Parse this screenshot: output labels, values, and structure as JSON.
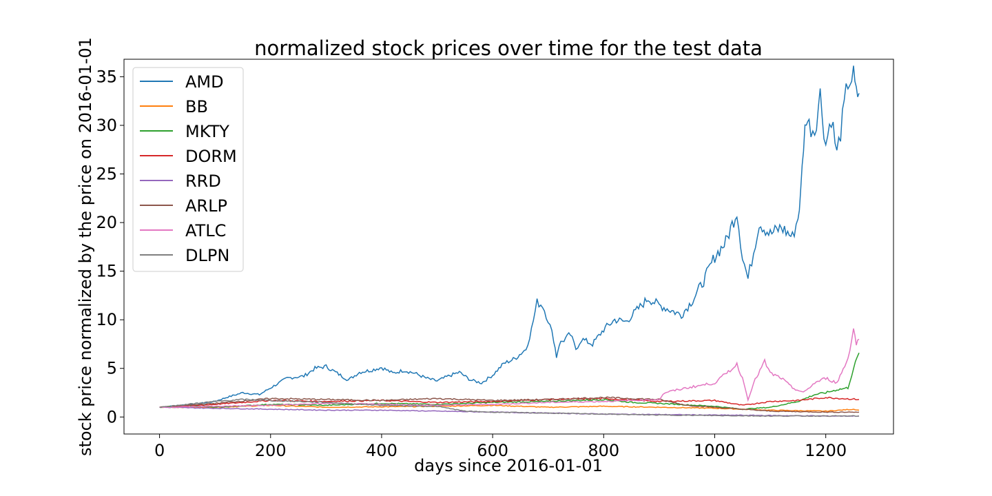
{
  "chart_data": {
    "type": "line",
    "title": "normalized stock prices over time for the test data",
    "xlabel": "days since 2016-01-01",
    "ylabel": "stock price normalized by the price on 2016-01-01",
    "xlim": [
      -64,
      1322
    ],
    "ylim": [
      -1.75,
      36.8
    ],
    "xticks": [
      0,
      200,
      400,
      600,
      800,
      1000,
      1200
    ],
    "yticks": [
      0,
      5,
      10,
      15,
      20,
      25,
      30,
      35
    ],
    "grid": false,
    "legend_position": "upper-left",
    "series": [
      {
        "name": "AMD",
        "color": "#1f77b4",
        "points": [
          [
            0,
            1.0
          ],
          [
            20,
            1.1
          ],
          [
            50,
            1.3
          ],
          [
            80,
            1.45
          ],
          [
            100,
            1.6
          ],
          [
            120,
            2.0
          ],
          [
            150,
            2.5
          ],
          [
            180,
            2.3
          ],
          [
            200,
            3.0
          ],
          [
            230,
            4.0
          ],
          [
            260,
            4.2
          ],
          [
            280,
            5.0
          ],
          [
            300,
            5.2
          ],
          [
            320,
            4.5
          ],
          [
            340,
            3.8
          ],
          [
            360,
            4.6
          ],
          [
            380,
            4.8
          ],
          [
            400,
            5.1
          ],
          [
            420,
            4.5
          ],
          [
            440,
            4.8
          ],
          [
            460,
            4.5
          ],
          [
            480,
            4.0
          ],
          [
            500,
            3.7
          ],
          [
            520,
            4.2
          ],
          [
            540,
            4.6
          ],
          [
            560,
            3.8
          ],
          [
            580,
            3.5
          ],
          [
            600,
            4.3
          ],
          [
            620,
            5.5
          ],
          [
            640,
            6.0
          ],
          [
            660,
            7.0
          ],
          [
            670,
            9.0
          ],
          [
            680,
            11.8
          ],
          [
            690,
            11.5
          ],
          [
            700,
            10.0
          ],
          [
            710,
            8.0
          ],
          [
            715,
            6.2
          ],
          [
            720,
            7.5
          ],
          [
            740,
            8.5
          ],
          [
            750,
            7.0
          ],
          [
            760,
            8.0
          ],
          [
            780,
            7.5
          ],
          [
            800,
            9.0
          ],
          [
            820,
            10.0
          ],
          [
            840,
            9.8
          ],
          [
            860,
            11.0
          ],
          [
            880,
            12.2
          ],
          [
            900,
            11.5
          ],
          [
            920,
            11.0
          ],
          [
            940,
            10.5
          ],
          [
            960,
            12.0
          ],
          [
            980,
            14.0
          ],
          [
            1000,
            16.5
          ],
          [
            1020,
            18.0
          ],
          [
            1040,
            21.2
          ],
          [
            1050,
            16.5
          ],
          [
            1060,
            14.2
          ],
          [
            1070,
            17.0
          ],
          [
            1080,
            20.0
          ],
          [
            1100,
            18.8
          ],
          [
            1120,
            19.5
          ],
          [
            1140,
            18.5
          ],
          [
            1150,
            20.5
          ],
          [
            1155,
            23.0
          ],
          [
            1160,
            28.0
          ],
          [
            1165,
            31.0
          ],
          [
            1170,
            30.0
          ],
          [
            1180,
            29.5
          ],
          [
            1190,
            33.2
          ],
          [
            1200,
            28.0
          ],
          [
            1210,
            31.0
          ],
          [
            1220,
            27.0
          ],
          [
            1230,
            30.5
          ],
          [
            1240,
            34.5
          ],
          [
            1250,
            35.0
          ],
          [
            1255,
            33.0
          ],
          [
            1260,
            33.3
          ]
        ]
      },
      {
        "name": "BB",
        "color": "#ff7f0e",
        "points": [
          [
            0,
            1.0
          ],
          [
            100,
            1.0
          ],
          [
            200,
            1.2
          ],
          [
            300,
            1.0
          ],
          [
            400,
            1.05
          ],
          [
            500,
            1.1
          ],
          [
            600,
            1.2
          ],
          [
            700,
            1.0
          ],
          [
            800,
            1.1
          ],
          [
            900,
            1.0
          ],
          [
            1000,
            0.9
          ],
          [
            1100,
            0.7
          ],
          [
            1200,
            0.6
          ],
          [
            1250,
            0.8
          ],
          [
            1260,
            0.7
          ]
        ]
      },
      {
        "name": "MKTY",
        "color": "#2ca02c",
        "points": [
          [
            0,
            1.0
          ],
          [
            50,
            1.2
          ],
          [
            100,
            1.0
          ],
          [
            200,
            1.3
          ],
          [
            300,
            1.2
          ],
          [
            400,
            1.4
          ],
          [
            500,
            1.3
          ],
          [
            600,
            1.5
          ],
          [
            700,
            1.6
          ],
          [
            800,
            1.8
          ],
          [
            850,
            1.5
          ],
          [
            900,
            1.4
          ],
          [
            1000,
            1.1
          ],
          [
            1050,
            0.8
          ],
          [
            1100,
            1.0
          ],
          [
            1150,
            1.6
          ],
          [
            1180,
            2.3
          ],
          [
            1200,
            2.5
          ],
          [
            1220,
            2.8
          ],
          [
            1240,
            3.0
          ],
          [
            1250,
            5.0
          ],
          [
            1260,
            6.6
          ]
        ]
      },
      {
        "name": "DORM",
        "color": "#d62728",
        "points": [
          [
            0,
            1.0
          ],
          [
            100,
            1.3
          ],
          [
            200,
            1.7
          ],
          [
            300,
            1.6
          ],
          [
            400,
            1.7
          ],
          [
            500,
            1.5
          ],
          [
            600,
            1.6
          ],
          [
            700,
            1.8
          ],
          [
            800,
            1.9
          ],
          [
            900,
            1.6
          ],
          [
            1000,
            1.7
          ],
          [
            1050,
            1.2
          ],
          [
            1100,
            1.6
          ],
          [
            1150,
            1.7
          ],
          [
            1200,
            2.0
          ],
          [
            1260,
            1.8
          ]
        ]
      },
      {
        "name": "RRD",
        "color": "#9467bd",
        "points": [
          [
            0,
            1.0
          ],
          [
            100,
            0.9
          ],
          [
            200,
            0.8
          ],
          [
            300,
            0.7
          ],
          [
            400,
            0.7
          ],
          [
            500,
            0.6
          ],
          [
            600,
            0.5
          ],
          [
            700,
            0.4
          ],
          [
            800,
            0.3
          ],
          [
            900,
            0.25
          ],
          [
            1000,
            0.2
          ],
          [
            1100,
            0.15
          ],
          [
            1200,
            0.1
          ],
          [
            1260,
            0.1
          ]
        ]
      },
      {
        "name": "ARLP",
        "color": "#8c564b",
        "points": [
          [
            0,
            1.0
          ],
          [
            100,
            1.4
          ],
          [
            200,
            1.9
          ],
          [
            300,
            1.8
          ],
          [
            400,
            1.7
          ],
          [
            500,
            1.9
          ],
          [
            600,
            1.7
          ],
          [
            700,
            1.8
          ],
          [
            800,
            2.0
          ],
          [
            900,
            1.8
          ],
          [
            950,
            1.2
          ],
          [
            1000,
            1.0
          ],
          [
            1050,
            0.8
          ],
          [
            1100,
            0.6
          ],
          [
            1200,
            0.5
          ],
          [
            1260,
            0.5
          ]
        ]
      },
      {
        "name": "ATLC",
        "color": "#e377c2",
        "points": [
          [
            0,
            1.0
          ],
          [
            100,
            1.1
          ],
          [
            200,
            1.2
          ],
          [
            300,
            1.4
          ],
          [
            400,
            1.3
          ],
          [
            500,
            1.2
          ],
          [
            600,
            1.3
          ],
          [
            700,
            1.5
          ],
          [
            800,
            1.6
          ],
          [
            850,
            1.7
          ],
          [
            900,
            1.8
          ],
          [
            910,
            2.5
          ],
          [
            950,
            3.0
          ],
          [
            1000,
            3.5
          ],
          [
            1040,
            5.4
          ],
          [
            1050,
            4.0
          ],
          [
            1060,
            1.8
          ],
          [
            1070,
            3.5
          ],
          [
            1090,
            5.7
          ],
          [
            1100,
            4.5
          ],
          [
            1120,
            4.0
          ],
          [
            1140,
            3.0
          ],
          [
            1160,
            2.5
          ],
          [
            1180,
            3.5
          ],
          [
            1200,
            4.0
          ],
          [
            1220,
            3.5
          ],
          [
            1240,
            6.0
          ],
          [
            1250,
            9.1
          ],
          [
            1255,
            7.5
          ],
          [
            1260,
            8.0
          ]
        ]
      },
      {
        "name": "DLPN",
        "color": "#7f7f7f",
        "points": [
          [
            0,
            1.0
          ],
          [
            50,
            1.3
          ],
          [
            100,
            1.6
          ],
          [
            150,
            1.8
          ],
          [
            200,
            1.7
          ],
          [
            300,
            1.5
          ],
          [
            400,
            1.2
          ],
          [
            500,
            1.1
          ],
          [
            550,
            0.6
          ],
          [
            600,
            0.5
          ],
          [
            700,
            0.4
          ],
          [
            800,
            0.3
          ],
          [
            900,
            0.2
          ],
          [
            1000,
            0.15
          ],
          [
            1100,
            0.1
          ],
          [
            1260,
            0.1
          ]
        ]
      }
    ]
  }
}
